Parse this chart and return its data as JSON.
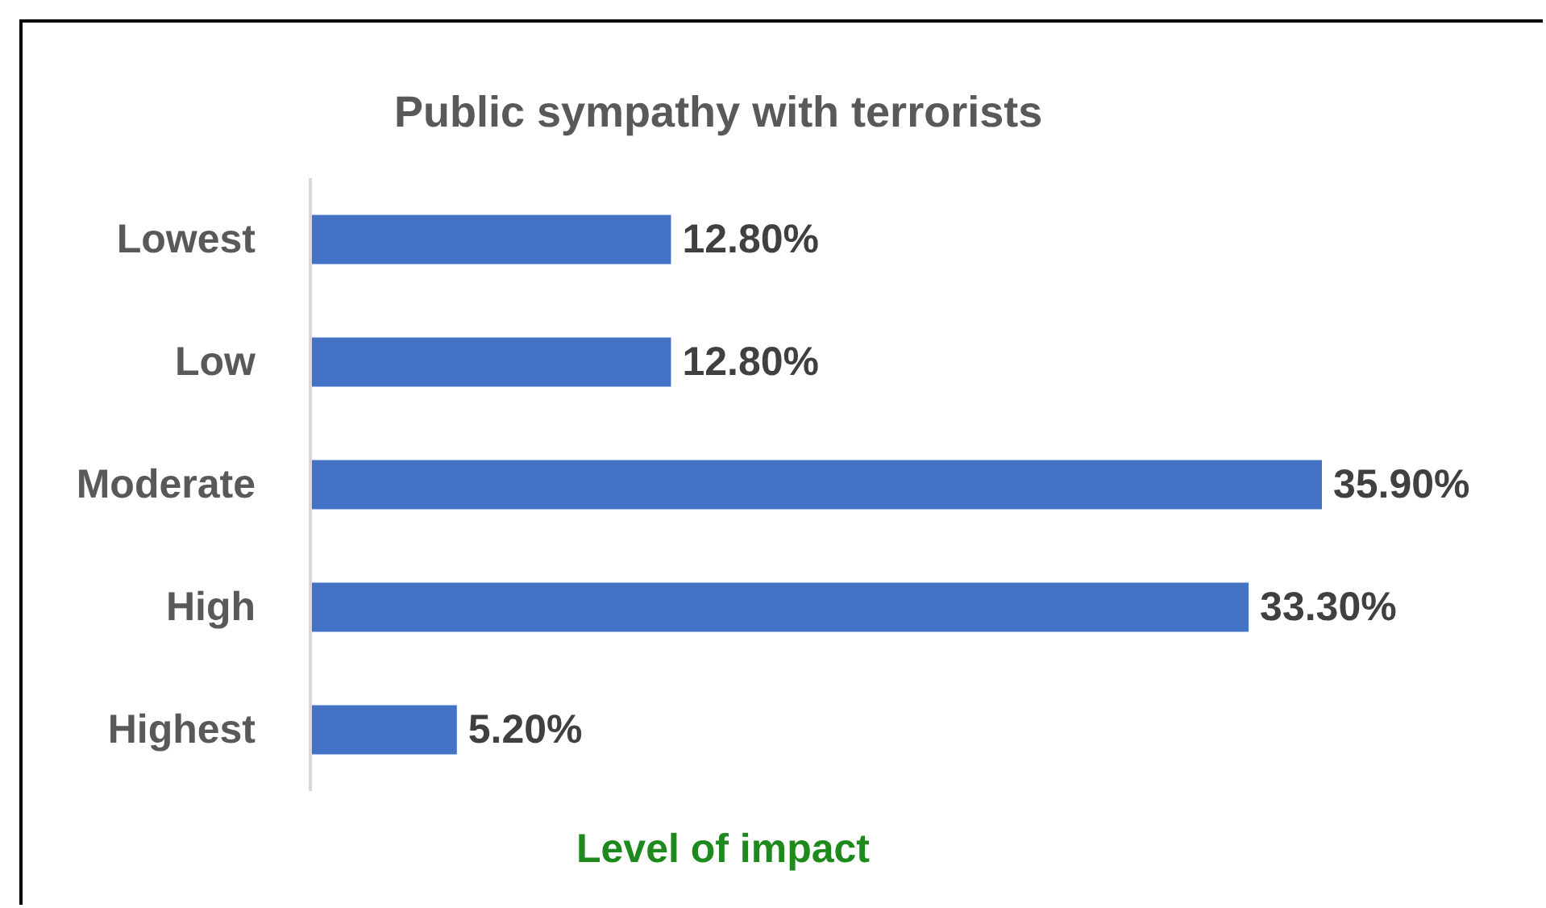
{
  "chart_data": {
    "type": "bar",
    "orientation": "horizontal",
    "title": "Public sympathy with terrorists",
    "xlabel": "Level of impact",
    "categories": [
      "Lowest",
      "Low",
      "Moderate",
      "High",
      "Highest"
    ],
    "values": [
      12.8,
      12.8,
      35.9,
      33.3,
      5.2
    ],
    "value_labels": [
      "12.80%",
      "12.80%",
      "35.90%",
      "33.30%",
      "5.20%"
    ],
    "color": "#4472c4",
    "tick_labels": "y"
  }
}
